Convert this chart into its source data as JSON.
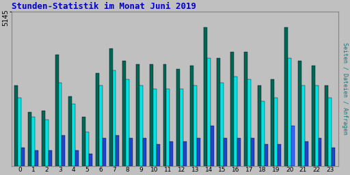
{
  "title": "Stunden-Statistik im Monat Juni 2019",
  "title_color": "#0000cc",
  "background_color": "#c0c0c0",
  "plot_bg_color": "#c0c0c0",
  "ylabel_right": "Seiten / Dateien / Anfragen",
  "ylabel_right_color": "#008080",
  "ytick_label": "5145",
  "xlabel_values": [
    0,
    1,
    2,
    3,
    4,
    5,
    6,
    7,
    8,
    9,
    10,
    11,
    12,
    13,
    14,
    15,
    16,
    17,
    18,
    19,
    20,
    21,
    22,
    23
  ],
  "seiten": [
    52,
    35,
    36,
    72,
    45,
    32,
    60,
    76,
    68,
    66,
    66,
    66,
    63,
    65,
    90,
    70,
    74,
    74,
    52,
    56,
    90,
    68,
    65,
    52
  ],
  "dateien": [
    44,
    32,
    30,
    54,
    40,
    22,
    52,
    62,
    56,
    52,
    50,
    50,
    50,
    52,
    70,
    54,
    58,
    56,
    42,
    44,
    70,
    52,
    52,
    44
  ],
  "anfragen": [
    12,
    10,
    10,
    20,
    10,
    8,
    18,
    20,
    18,
    18,
    14,
    16,
    16,
    18,
    26,
    18,
    18,
    18,
    14,
    14,
    26,
    16,
    18,
    12
  ],
  "color_seiten": "#006655",
  "color_dateien": "#00e5e5",
  "color_anfragen_normal": "#2244cc",
  "color_anfragen_special": "#3366ff",
  "special_hour": 20,
  "bar_width": 0.25,
  "group_width": 1.0,
  "ylim_max": 100,
  "grid_color": "#999999",
  "grid_linewidth": 0.7,
  "n_gridlines": 6
}
